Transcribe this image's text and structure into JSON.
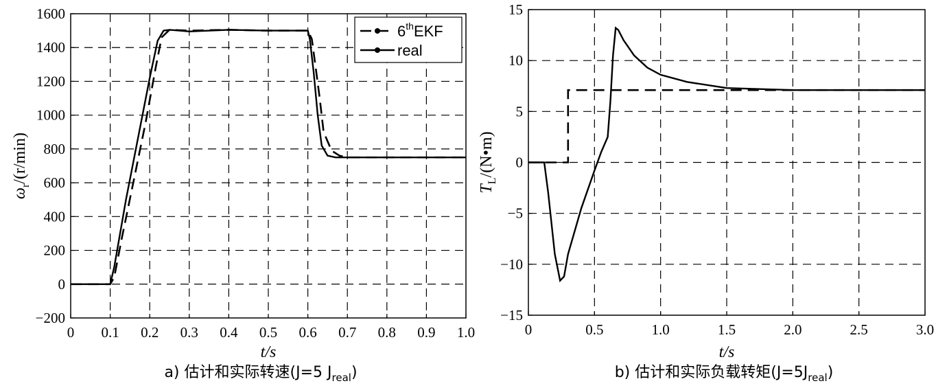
{
  "chart_data": [
    {
      "type": "line",
      "caption": "a) 估计和实际转速(J=5 J",
      "caption_sub": "real",
      "caption_end": ")",
      "xlabel": "t/s",
      "ylabel": "ω",
      "ylabel_sub": "r",
      "ylabel_unit": "/(r/min)",
      "xlim": [
        0,
        1.0
      ],
      "ylim": [
        -200,
        1600
      ],
      "xticks": [
        "0",
        "0.1",
        "0.2",
        "0.3",
        "0.4",
        "0.5",
        "0.6",
        "0.7",
        "0.8",
        "0.9",
        "1.0"
      ],
      "yticks": [
        "−200",
        "0",
        "200",
        "400",
        "600",
        "800",
        "1000",
        "1200",
        "1400",
        "1600"
      ],
      "grid": true,
      "legend_position": "top-right",
      "legend": [
        {
          "label_pre": "6",
          "label_sup": "th",
          "label_post": "EKF",
          "style": "dashed"
        },
        {
          "label_pre": "real",
          "label_sup": "",
          "label_post": "",
          "style": "solid"
        }
      ],
      "series": [
        {
          "name": "6thEKF",
          "style": "dashed",
          "x": [
            0,
            0.1,
            0.11,
            0.13,
            0.16,
            0.19,
            0.215,
            0.23,
            0.25,
            0.3,
            0.4,
            0.5,
            0.6,
            0.61,
            0.62,
            0.63,
            0.64,
            0.66,
            0.68,
            0.7,
            0.8,
            1.0
          ],
          "y": [
            0,
            0,
            40,
            280,
            620,
            960,
            1280,
            1460,
            1505,
            1500,
            1505,
            1500,
            1500,
            1450,
            1280,
            1100,
            900,
            790,
            760,
            750,
            750,
            750
          ]
        },
        {
          "name": "real",
          "style": "solid",
          "x": [
            0,
            0.1,
            0.11,
            0.14,
            0.17,
            0.2,
            0.22,
            0.235,
            0.25,
            0.3,
            0.4,
            0.5,
            0.6,
            0.605,
            0.615,
            0.625,
            0.635,
            0.65,
            0.67,
            0.7,
            0.8,
            1.0
          ],
          "y": [
            0,
            0,
            100,
            500,
            860,
            1220,
            1440,
            1500,
            1505,
            1495,
            1505,
            1500,
            1500,
            1450,
            1250,
            1000,
            820,
            760,
            750,
            750,
            750,
            750
          ]
        }
      ]
    },
    {
      "type": "line",
      "caption": "b) 估计和实际负载转矩(J=5J",
      "caption_sub": "real",
      "caption_end": ")",
      "xlabel": "t/s",
      "ylabel": "T",
      "ylabel_sub": "L",
      "ylabel_unit": "/(N•m)",
      "xlim": [
        0,
        3.0
      ],
      "ylim": [
        -15,
        15
      ],
      "xticks": [
        "0",
        "0.5",
        "1.0",
        "1.5",
        "2.0",
        "2.5",
        "3.0"
      ],
      "yticks": [
        "−15",
        "−10",
        "−5",
        "0",
        "5",
        "10",
        "15"
      ],
      "grid": true,
      "series": [
        {
          "name": "real",
          "style": "dashed",
          "x": [
            0,
            0.3,
            0.3,
            3.0
          ],
          "y": [
            0,
            0,
            7.1,
            7.1
          ]
        },
        {
          "name": "6thEKF",
          "style": "solid",
          "x": [
            0,
            0.12,
            0.15,
            0.2,
            0.24,
            0.27,
            0.3,
            0.4,
            0.5,
            0.55,
            0.6,
            0.62,
            0.64,
            0.66,
            0.68,
            0.72,
            0.8,
            0.9,
            1.0,
            1.2,
            1.5,
            2.0,
            2.5,
            3.0
          ],
          "y": [
            0,
            0,
            -3,
            -9,
            -11.6,
            -11.2,
            -9,
            -4.5,
            -0.8,
            1,
            2.5,
            6,
            10.5,
            13.2,
            13,
            12,
            10.5,
            9.3,
            8.6,
            7.9,
            7.3,
            7.1,
            7.1,
            7.1
          ]
        }
      ]
    }
  ]
}
